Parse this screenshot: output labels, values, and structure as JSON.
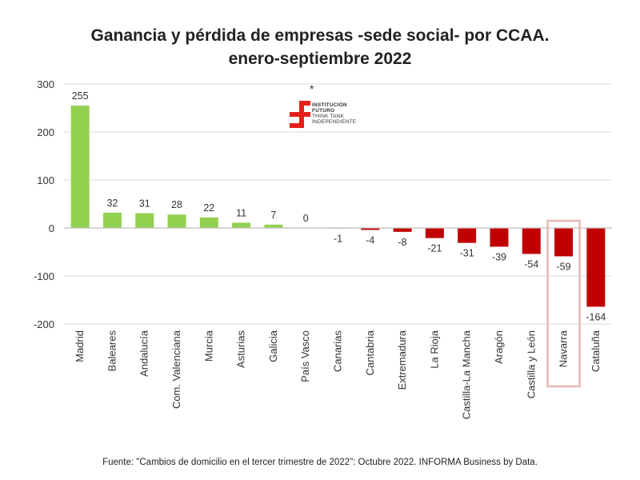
{
  "chart_data": {
    "type": "bar",
    "title_line1": "Ganancia y pérdida de empresas -sede social- por CCAA.",
    "title_line2": "enero-septiembre 2022",
    "categories": [
      "Madrid",
      "Baleares",
      "Andalucía",
      "Com. Valenciana",
      "Murcia",
      "Asturias",
      "Galicia",
      "País Vasco",
      "Canarias",
      "Cantabria",
      "Extremadura",
      "La Rioja",
      "Castilla-La Mancha",
      "Aragón",
      "Castilla y León",
      "Navarra",
      "Cataluña"
    ],
    "values": [
      255,
      32,
      31,
      28,
      22,
      11,
      7,
      0,
      -1,
      -4,
      -8,
      -21,
      -31,
      -39,
      -54,
      -59,
      -164
    ],
    "ylim": [
      -200,
      300
    ],
    "yticks": [
      300,
      200,
      100,
      0,
      -100,
      -200
    ],
    "grid": true,
    "highlighted_category": "Navarra",
    "colors": {
      "positive": "#92d050",
      "negative": "#c00000",
      "highlight_box": "#e6b8b7",
      "grid": "#d9d9d9"
    }
  },
  "annotation": {
    "asterisk": "*"
  },
  "logo": {
    "lines": [
      "INSTITUCIÓN",
      "FUTURO",
      "THINK TANK",
      "INDEPENDIENTE"
    ],
    "color": "#e32019"
  },
  "source": "Fuente: \"Cambios de domicilio en el tercer trimestre de 2022\": Octubre 2022. INFORMA Business by Data."
}
